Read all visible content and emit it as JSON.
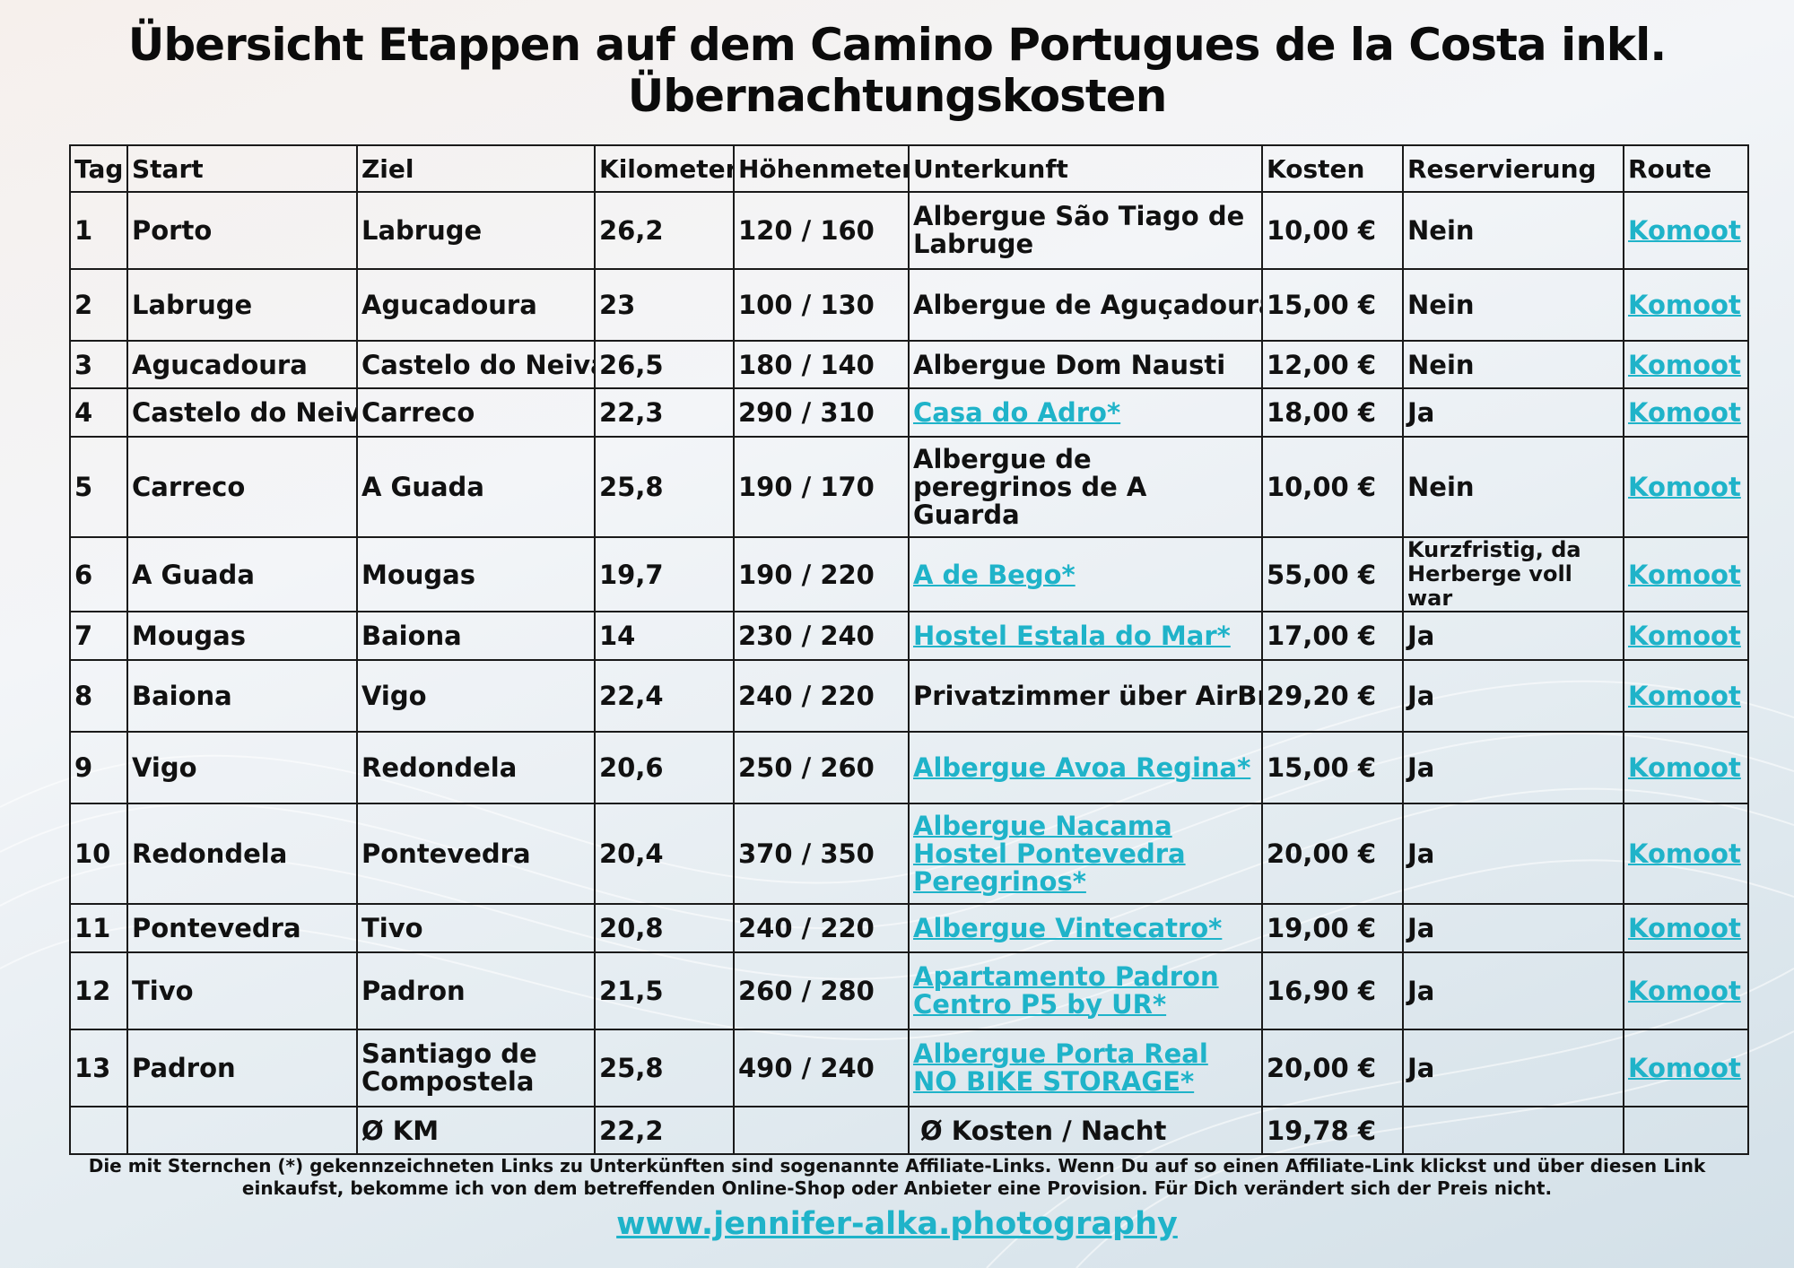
{
  "title_line1": "Übersicht Etappen auf dem Camino Portugues de la Costa inkl.",
  "title_line2": "Übernachtungskosten",
  "headers": [
    "Tag",
    "Start",
    "Ziel",
    "Kilometer",
    "Höhenmeter",
    "Unterkunft",
    "Kosten",
    "Reservierung",
    "Route"
  ],
  "rows": [
    {
      "tag": "1",
      "start": "Porto",
      "ziel": "Labruge",
      "km": "26,2",
      "hm": "120 / 160",
      "unterkunft": "Albergue São Tiago de Labruge",
      "link": false,
      "kosten": "10,00 €",
      "reservierung": "Nein",
      "route": "Komoot"
    },
    {
      "tag": "2",
      "start": "Labruge",
      "ziel": "Agucadoura",
      "km": "23",
      "hm": "100 / 130",
      "unterkunft": "Albergue de Aguçadoura",
      "link": false,
      "kosten": "15,00 €",
      "reservierung": "Nein",
      "route": "Komoot"
    },
    {
      "tag": "3",
      "start": "Agucadoura",
      "ziel": "Castelo do Neiva",
      "km": "26,5",
      "hm": "180 / 140",
      "unterkunft": "Albergue Dom Nausti",
      "link": false,
      "kosten": "12,00 €",
      "reservierung": "Nein",
      "route": "Komoot"
    },
    {
      "tag": "4",
      "start": "Castelo do Neiva",
      "ziel": "Carreco",
      "km": "22,3",
      "hm": "290 / 310",
      "unterkunft": "Casa do Adro*",
      "link": true,
      "kosten": "18,00 €",
      "reservierung": "Ja",
      "route": "Komoot"
    },
    {
      "tag": "5",
      "start": "Carreco",
      "ziel": "A Guada",
      "km": "25,8",
      "hm": "190 / 170",
      "unterkunft": "Albergue de peregrinos de A Guarda",
      "link": false,
      "kosten": "10,00 €",
      "reservierung": "Nein",
      "route": "Komoot"
    },
    {
      "tag": "6",
      "start": "A Guada",
      "ziel": "Mougas",
      "km": "19,7",
      "hm": "190 / 220",
      "unterkunft": "A de Bego*",
      "link": true,
      "kosten": "55,00 €",
      "reservierung": "Kurzfristig, da Herberge voll war",
      "route": "Komoot"
    },
    {
      "tag": "7",
      "start": "Mougas",
      "ziel": "Baiona",
      "km": "14",
      "hm": "230 / 240",
      "unterkunft": "Hostel Estala do Mar*",
      "link": true,
      "kosten": "17,00 €",
      "reservierung": "Ja",
      "route": "Komoot"
    },
    {
      "tag": "8",
      "start": "Baiona",
      "ziel": "Vigo",
      "km": "22,4",
      "hm": "240 / 220",
      "unterkunft": "Privatzimmer über AirBnB",
      "link": false,
      "kosten": "29,20 €",
      "reservierung": "Ja",
      "route": "Komoot"
    },
    {
      "tag": "9",
      "start": "Vigo",
      "ziel": "Redondela",
      "km": "20,6",
      "hm": "250 / 260",
      "unterkunft": "Albergue Avoa Regina*",
      "link": true,
      "kosten": "15,00 €",
      "reservierung": "Ja",
      "route": "Komoot"
    },
    {
      "tag": "10",
      "start": "Redondela",
      "ziel": "Pontevedra",
      "km": "20,4",
      "hm": "370 / 350",
      "unterkunft": "Albergue Nacama Hostel Pontevedra Peregrinos*",
      "link": true,
      "kosten": "20,00 €",
      "reservierung": "Ja",
      "route": "Komoot"
    },
    {
      "tag": "11",
      "start": "Pontevedra",
      "ziel": "Tivo",
      "km": "20,8",
      "hm": "240 / 220",
      "unterkunft": "Albergue Vintecatro*",
      "link": true,
      "kosten": "19,00 €",
      "reservierung": "Ja",
      "route": "Komoot"
    },
    {
      "tag": "12",
      "start": "Tivo",
      "ziel": "Padron",
      "km": "21,5",
      "hm": "260 / 280",
      "unterkunft": "Apartamento Padron Centro P5 by UR*",
      "link": true,
      "kosten": "16,90 €",
      "reservierung": "Ja",
      "route": "Komoot"
    },
    {
      "tag": "13",
      "start": "Padron",
      "ziel": "Santiago de Compostela",
      "km": "25,8",
      "hm": "490 / 240",
      "unterkunft": "Albergue Porta Real NO BIKE STORAGE*",
      "link": true,
      "kosten": "20,00 €",
      "reservierung": "Ja",
      "route": "Komoot"
    }
  ],
  "summary": {
    "km_label": "Ø KM",
    "km_value": "22,2",
    "cost_label": "Ø Kosten / Nacht",
    "cost_value": "19,78 €"
  },
  "footnote": "Die mit Sternchen (*) gekennzeichneten Links zu Unterkünften sind sogenannte Affiliate-Links. Wenn Du auf so einen Affiliate-Link klickst und über diesen Link einkaufst, bekomme ich von dem betreffenden Online-Shop oder Anbieter eine Provision. Für Dich verändert sich der Preis nicht.",
  "website": "www.jennifer-alka.photography",
  "colors": {
    "link": "#1fb3c9",
    "text": "#111111",
    "border": "#1a1a1a"
  }
}
